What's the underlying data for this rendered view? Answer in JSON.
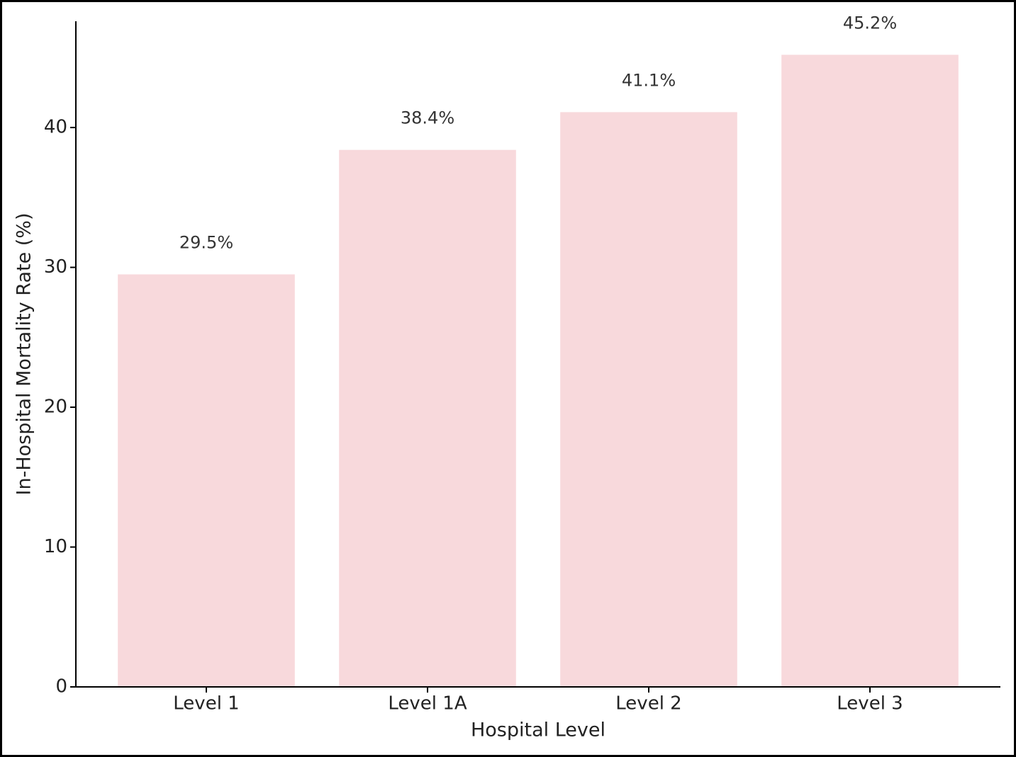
{
  "chart_data": {
    "type": "bar",
    "x_label": "Hospital Level",
    "y_label": "In-Hospital Mortality Rate (%)",
    "categories": [
      "Level 1",
      "Level 1A",
      "Level 2",
      "Level 3"
    ],
    "values": [
      29.5,
      38.4,
      41.1,
      45.2
    ],
    "value_labels": [
      "29.5%",
      "38.4%",
      "41.1%",
      "45.2%"
    ],
    "color": "#f8d9dc",
    "ylim": [
      0,
      47.6
    ],
    "yticks": [
      0,
      10,
      20,
      30,
      40
    ],
    "grid": false
  }
}
